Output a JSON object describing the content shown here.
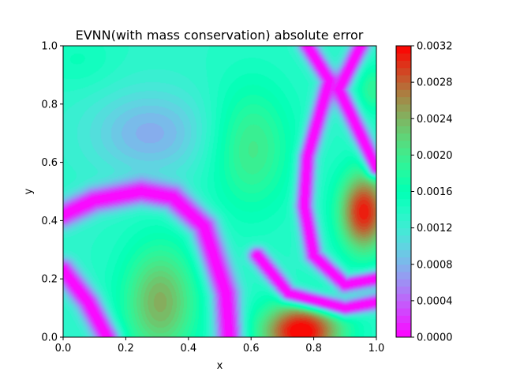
{
  "chart_data": {
    "type": "heatmap",
    "subtype": "filled-contour",
    "title": "EVNN(with mass conservation) absolute error",
    "xlabel": "x",
    "ylabel": "y",
    "xlim": [
      0.0,
      1.0
    ],
    "ylim": [
      0.0,
      1.0
    ],
    "x_ticks": [
      "0.0",
      "0.2",
      "0.4",
      "0.6",
      "0.8",
      "1.0"
    ],
    "y_ticks": [
      "0.0",
      "0.2",
      "0.4",
      "0.6",
      "0.8",
      "1.0"
    ],
    "colormap": "rainbow",
    "colorbar": {
      "min": 0.0,
      "max": 0.0032,
      "ticks": [
        "0.0000",
        "0.0004",
        "0.0008",
        "0.0012",
        "0.0016",
        "0.0020",
        "0.0024",
        "0.0028",
        "0.0032"
      ],
      "levels": 40
    },
    "features": [
      {
        "kind": "max",
        "x": 0.76,
        "y": 0.02,
        "value": 0.0031
      },
      {
        "kind": "max",
        "x": 0.96,
        "y": 0.43,
        "value": 0.003
      },
      {
        "kind": "max",
        "x": 0.31,
        "y": 0.13,
        "value": 0.0023
      },
      {
        "kind": "max",
        "x": 0.6,
        "y": 0.65,
        "value": 0.002
      },
      {
        "kind": "max",
        "x": 0.99,
        "y": 0.85,
        "value": 0.0019
      },
      {
        "kind": "max",
        "x": 0.05,
        "y": 0.96,
        "value": 0.0014
      }
    ]
  }
}
